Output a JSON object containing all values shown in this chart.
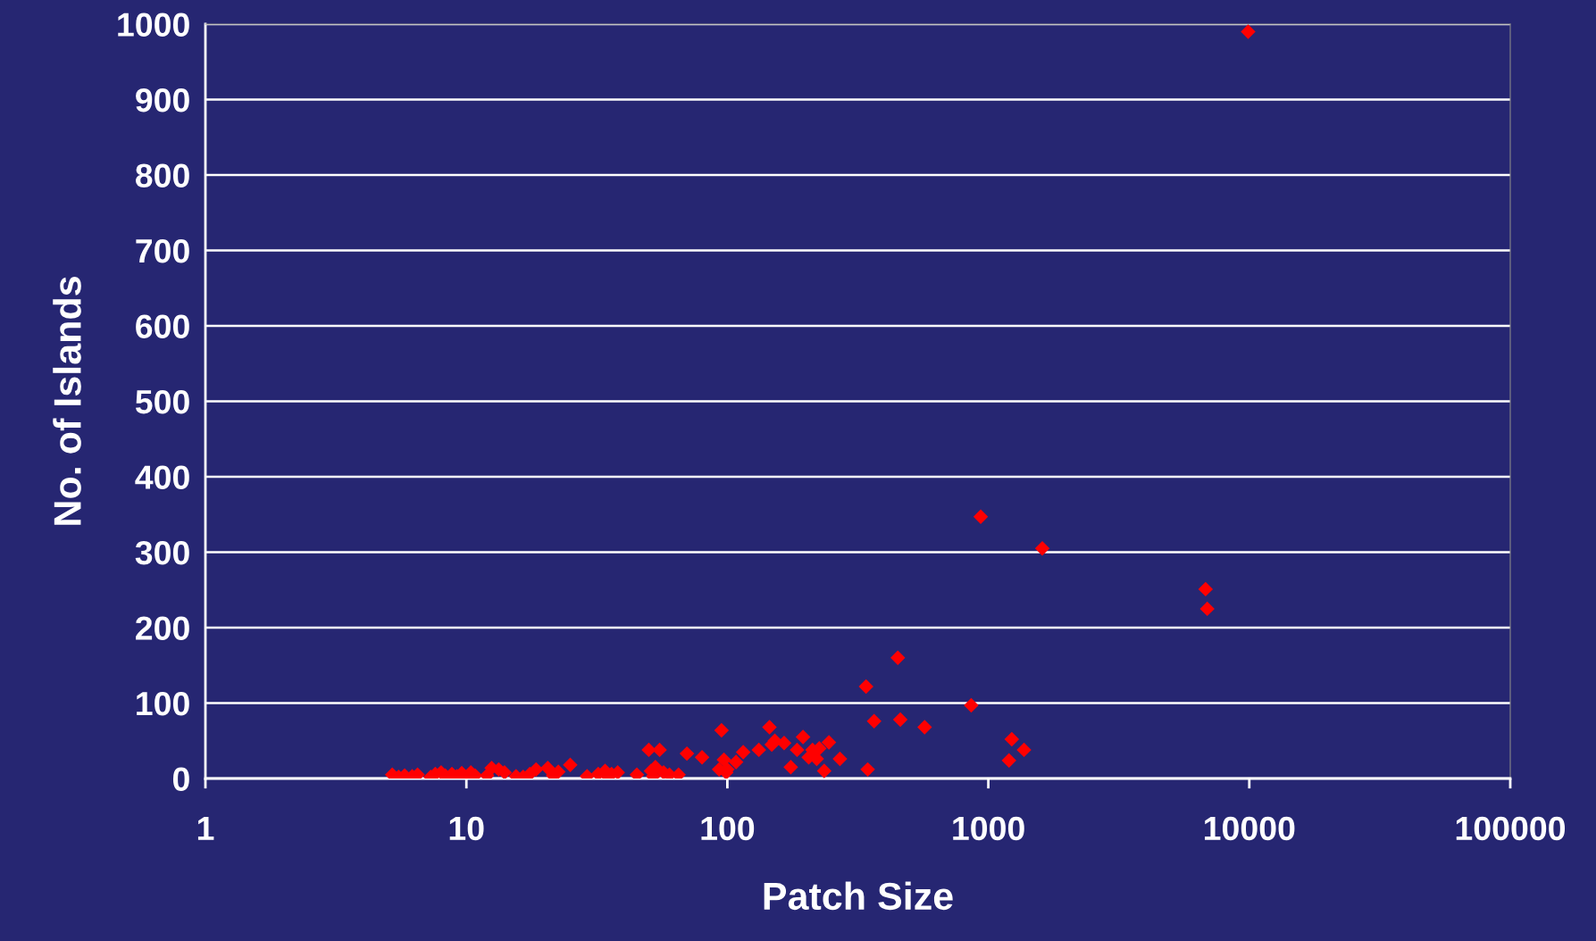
{
  "chart_data": {
    "type": "scatter",
    "xlabel": "Patch Size",
    "ylabel": "No. of Islands",
    "log": "x",
    "grid": "y",
    "marker": "diamond",
    "legend": false,
    "xlim": [
      1,
      100000
    ],
    "xticks": [
      1,
      10,
      100,
      1000,
      10000,
      100000
    ],
    "ylim": [
      0,
      1000
    ],
    "yticks": [
      0,
      100,
      200,
      300,
      400,
      500,
      600,
      700,
      800,
      900,
      1000
    ],
    "series": [
      {
        "color": "#ff0000",
        "x": [
          5.2,
          5.5,
          5.8,
          6.2,
          6.5,
          7.3,
          7.6,
          8,
          8.3,
          8.8,
          9.2,
          9.6,
          10,
          10.4,
          10.8,
          12,
          12.5,
          13.3,
          14,
          15.5,
          16.5,
          17.5,
          18.5,
          20.5,
          21.5,
          22.5,
          25,
          29,
          32,
          34,
          35,
          36,
          38,
          45,
          50,
          51,
          52,
          53,
          55,
          57,
          60,
          65,
          70,
          80,
          93,
          95,
          97,
          99,
          100,
          108,
          115,
          132,
          145,
          148,
          152,
          165,
          175,
          185,
          195,
          205,
          212,
          220,
          225,
          235,
          245,
          270,
          340,
          345,
          365,
          450,
          460,
          570,
          860,
          935,
          1200,
          1230,
          1370,
          1610,
          6800,
          6900,
          9900
        ],
        "values": [
          5,
          2,
          4,
          3,
          5,
          2,
          6,
          8,
          4,
          6,
          3,
          7,
          2,
          8,
          4,
          4,
          14,
          12,
          8,
          3,
          2,
          6,
          12,
          14,
          4,
          9,
          18,
          3,
          6,
          10,
          2,
          6,
          8,
          5,
          38,
          10,
          3,
          15,
          38,
          8,
          5,
          5,
          33,
          28,
          12,
          64,
          25,
          8,
          12,
          22,
          35,
          38,
          68,
          45,
          50,
          47,
          15,
          38,
          55,
          28,
          38,
          26,
          40,
          10,
          48,
          26,
          122,
          12,
          76,
          160,
          78,
          68,
          97,
          347,
          24,
          52,
          38,
          305,
          251,
          225,
          990
        ]
      }
    ]
  }
}
